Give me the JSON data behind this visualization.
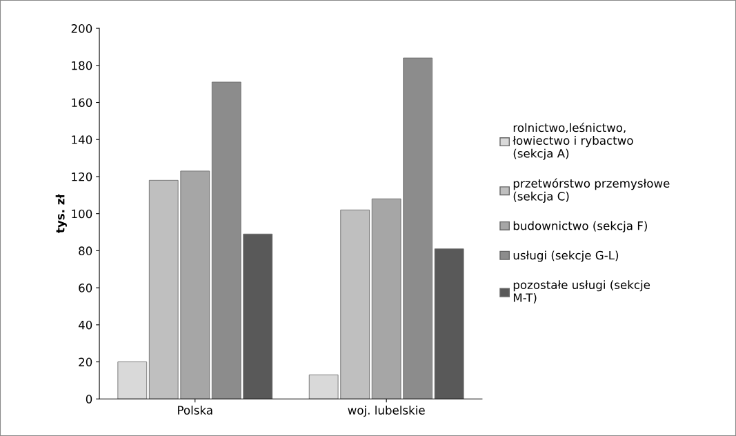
{
  "chart_data": {
    "type": "bar",
    "ylabel": "tys. zł",
    "categories": [
      "Polska",
      "woj. lubelskie"
    ],
    "series": [
      {
        "name": "rolnictwo,leśnictwo, łowiectwo i rybactwo (sekcja A)",
        "color": "#d9d9d9",
        "values": [
          20,
          13
        ]
      },
      {
        "name": "przetwórstwo przemysłowe (sekcja C)",
        "color": "#bfbfbf",
        "values": [
          118,
          102
        ]
      },
      {
        "name": "budownictwo (sekcja F)",
        "color": "#a6a6a6",
        "values": [
          123,
          108
        ]
      },
      {
        "name": "usługi (sekcje G-L)",
        "color": "#8c8c8c",
        "values": [
          171,
          184
        ]
      },
      {
        "name": "pozostałe usługi (sekcje M-T)",
        "color": "#595959",
        "values": [
          89,
          81
        ]
      }
    ],
    "ylim": [
      0,
      200
    ],
    "yticks": [
      0,
      20,
      40,
      60,
      80,
      100,
      120,
      140,
      160,
      180,
      200
    ],
    "grid": false,
    "legend": "right"
  }
}
